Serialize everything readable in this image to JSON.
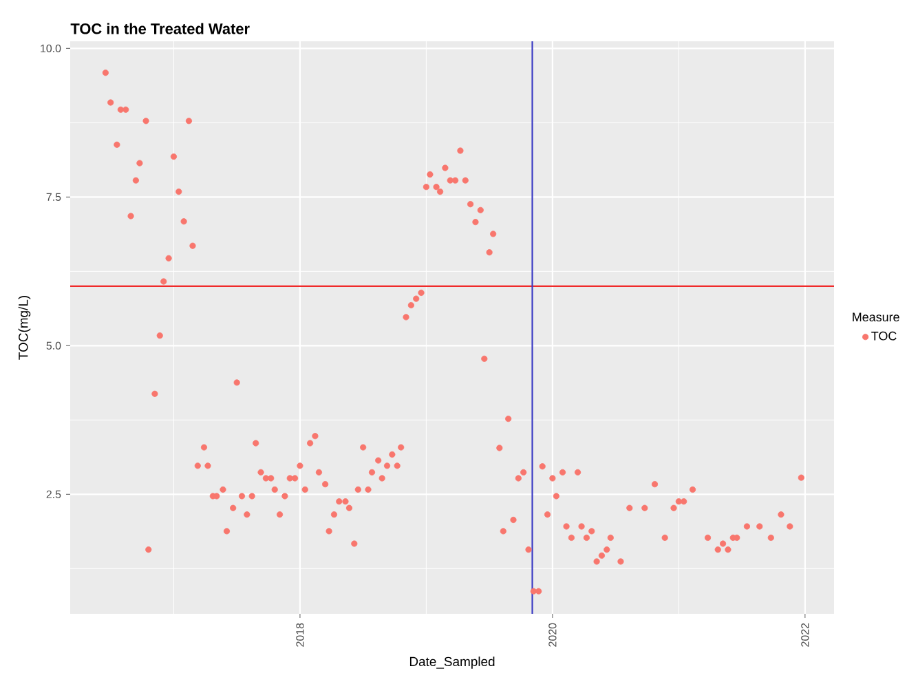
{
  "chart_data": {
    "type": "scatter",
    "title": "TOC in the Treated Water",
    "xlabel": "Date_Sampled",
    "ylabel": "TOC(mg/L)",
    "legend_title": "Measure",
    "legend": "right",
    "grid": true,
    "xlim": [
      2016.18,
      2022.23
    ],
    "xticks": [
      2018,
      2020,
      2022
    ],
    "ylim": [
      0.49,
      10.12
    ],
    "yticks": [
      {
        "value": 2.5,
        "label": "2.5"
      },
      {
        "value": 5,
        "label": "5.0"
      },
      {
        "value": 7.5,
        "label": "7.5"
      },
      {
        "value": 10,
        "label": "10.0"
      }
    ],
    "ref_lines": [
      {
        "axis": "y",
        "value": 6,
        "color": "#f02a2a"
      },
      {
        "axis": "x",
        "value": 2019.84,
        "color": "#3b3bc4"
      }
    ],
    "series": [
      {
        "name": "TOC",
        "color": "#f8766d",
        "x": [
          2016.46,
          2016.5,
          2016.55,
          2016.58,
          2016.62,
          2016.66,
          2016.7,
          2016.73,
          2016.78,
          2016.8,
          2016.85,
          2016.89,
          2016.92,
          2016.96,
          2017.0,
          2017.04,
          2017.08,
          2017.12,
          2017.15,
          2017.19,
          2017.24,
          2017.27,
          2017.31,
          2017.34,
          2017.39,
          2017.42,
          2017.47,
          2017.5,
          2017.54,
          2017.58,
          2017.62,
          2017.65,
          2017.69,
          2017.73,
          2017.77,
          2017.8,
          2017.84,
          2017.88,
          2017.92,
          2017.96,
          2018.0,
          2018.04,
          2018.08,
          2018.12,
          2018.15,
          2018.2,
          2018.23,
          2018.27,
          2018.31,
          2018.36,
          2018.39,
          2018.43,
          2018.46,
          2018.5,
          2018.54,
          2018.57,
          2018.62,
          2018.65,
          2018.69,
          2018.73,
          2018.77,
          2018.8,
          2018.84,
          2018.88,
          2018.92,
          2018.96,
          2019.0,
          2019.03,
          2019.08,
          2019.11,
          2019.15,
          2019.19,
          2019.23,
          2019.27,
          2019.31,
          2019.35,
          2019.39,
          2019.43,
          2019.46,
          2019.5,
          2019.53,
          2019.58,
          2019.61,
          2019.65,
          2019.69,
          2019.73,
          2019.77,
          2019.81,
          2019.85,
          2019.89,
          2019.92,
          2019.96,
          2020.0,
          2020.03,
          2020.08,
          2020.11,
          2020.15,
          2020.2,
          2020.23,
          2020.27,
          2020.31,
          2020.35,
          2020.39,
          2020.43,
          2020.46,
          2020.54,
          2020.61,
          2020.73,
          2020.81,
          2020.89,
          2020.96,
          2021.0,
          2021.04,
          2021.11,
          2021.23,
          2021.31,
          2021.35,
          2021.39,
          2021.43,
          2021.46,
          2021.54,
          2021.64,
          2021.73,
          2021.81,
          2021.88,
          2021.97
        ],
        "values": [
          9.59,
          9.09,
          8.38,
          8.97,
          8.97,
          7.18,
          7.78,
          8.07,
          8.78,
          1.57,
          4.19,
          5.17,
          6.08,
          6.47,
          8.18,
          7.59,
          7.09,
          8.78,
          6.68,
          2.98,
          3.29,
          2.98,
          2.47,
          2.47,
          2.58,
          1.88,
          2.27,
          4.38,
          2.47,
          2.16,
          2.47,
          3.36,
          2.87,
          2.77,
          2.77,
          2.58,
          2.16,
          2.47,
          2.77,
          2.77,
          2.98,
          2.58,
          3.36,
          3.48,
          2.87,
          2.67,
          1.88,
          2.16,
          2.38,
          2.38,
          2.27,
          1.67,
          2.58,
          3.29,
          2.58,
          2.87,
          3.07,
          2.77,
          2.98,
          3.17,
          2.98,
          3.29,
          5.48,
          5.68,
          5.79,
          5.89,
          7.67,
          7.88,
          7.67,
          7.59,
          7.99,
          7.78,
          7.78,
          8.28,
          7.78,
          7.38,
          7.08,
          7.28,
          4.78,
          6.57,
          6.88,
          3.28,
          1.88,
          3.77,
          2.07,
          2.77,
          2.87,
          1.57,
          0.87,
          0.87,
          2.97,
          2.16,
          2.77,
          2.47,
          2.87,
          1.96,
          1.77,
          2.87,
          1.96,
          1.77,
          1.88,
          1.37,
          1.47,
          1.57,
          1.77,
          1.37,
          2.27,
          2.27,
          2.67,
          1.77,
          2.27,
          2.38,
          2.38,
          2.58,
          1.77,
          1.57,
          1.67,
          1.57,
          1.77,
          1.77,
          1.96,
          1.96,
          1.77,
          2.16,
          1.96,
          2.78
        ]
      }
    ]
  }
}
